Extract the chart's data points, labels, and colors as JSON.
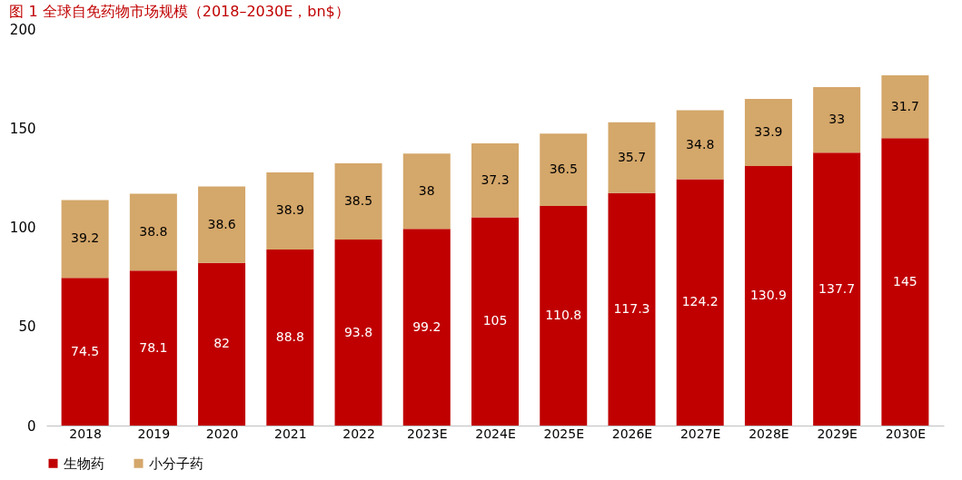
{
  "chart_data": {
    "type": "bar",
    "title": "图 1 全球自免药物市场规模（2018–2030E，bn$）",
    "stacked": true,
    "data_labels": true,
    "legend": "bottom",
    "grid": false,
    "categories": [
      "2018",
      "2019",
      "2020",
      "2021",
      "2022",
      "2023E",
      "2024E",
      "2025E",
      "2026E",
      "2027E",
      "2028E",
      "2029E",
      "2030E"
    ],
    "ylim": [
      0,
      200
    ],
    "yticks": [
      0,
      50,
      100,
      150,
      200
    ],
    "series": [
      {
        "name": "生物药",
        "color": "#c00000",
        "values": [
          74.5,
          78.1,
          82,
          88.8,
          93.8,
          99.2,
          105,
          110.8,
          117.3,
          124.2,
          130.9,
          137.7,
          145
        ]
      },
      {
        "name": "小分子药",
        "color": "#d4a76a",
        "values": [
          39.2,
          38.8,
          38.6,
          38.9,
          38.5,
          38,
          37.3,
          36.5,
          35.7,
          34.8,
          33.9,
          33,
          31.7
        ]
      }
    ]
  }
}
